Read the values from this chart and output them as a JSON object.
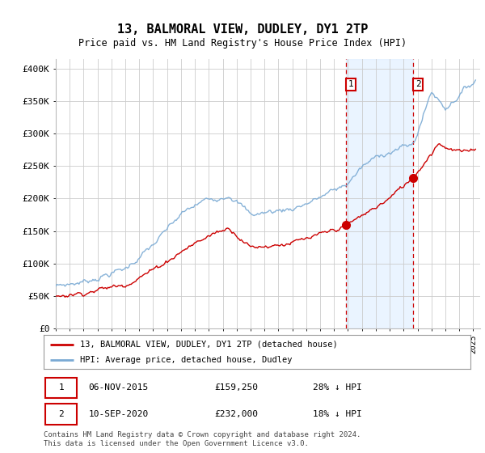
{
  "title": "13, BALMORAL VIEW, DUDLEY, DY1 2TP",
  "subtitle": "Price paid vs. HM Land Registry's House Price Index (HPI)",
  "ylabel_ticks": [
    "£0",
    "£50K",
    "£100K",
    "£150K",
    "£200K",
    "£250K",
    "£300K",
    "£350K",
    "£400K"
  ],
  "ytick_values": [
    0,
    50000,
    100000,
    150000,
    200000,
    250000,
    300000,
    350000,
    400000
  ],
  "ylim": [
    0,
    415000
  ],
  "xlim_start": 1995.0,
  "xlim_end": 2025.5,
  "hpi_color": "#7aaad4",
  "price_color": "#cc0000",
  "transaction1_date": 2015.85,
  "transaction1_price": 159250,
  "transaction2_date": 2020.7,
  "transaction2_price": 232000,
  "vline_color": "#cc0000",
  "shade_color": "#ddeeff",
  "annotation_box_color": "#cc0000",
  "legend_label1": "13, BALMORAL VIEW, DUDLEY, DY1 2TP (detached house)",
  "legend_label2": "HPI: Average price, detached house, Dudley",
  "info1_date": "06-NOV-2015",
  "info1_price": "£159,250",
  "info1_hpi": "28% ↓ HPI",
  "info2_date": "10-SEP-2020",
  "info2_price": "£232,000",
  "info2_hpi": "18% ↓ HPI",
  "footer": "Contains HM Land Registry data © Crown copyright and database right 2024.\nThis data is licensed under the Open Government Licence v3.0.",
  "background_color": "#ffffff",
  "grid_color": "#cccccc"
}
